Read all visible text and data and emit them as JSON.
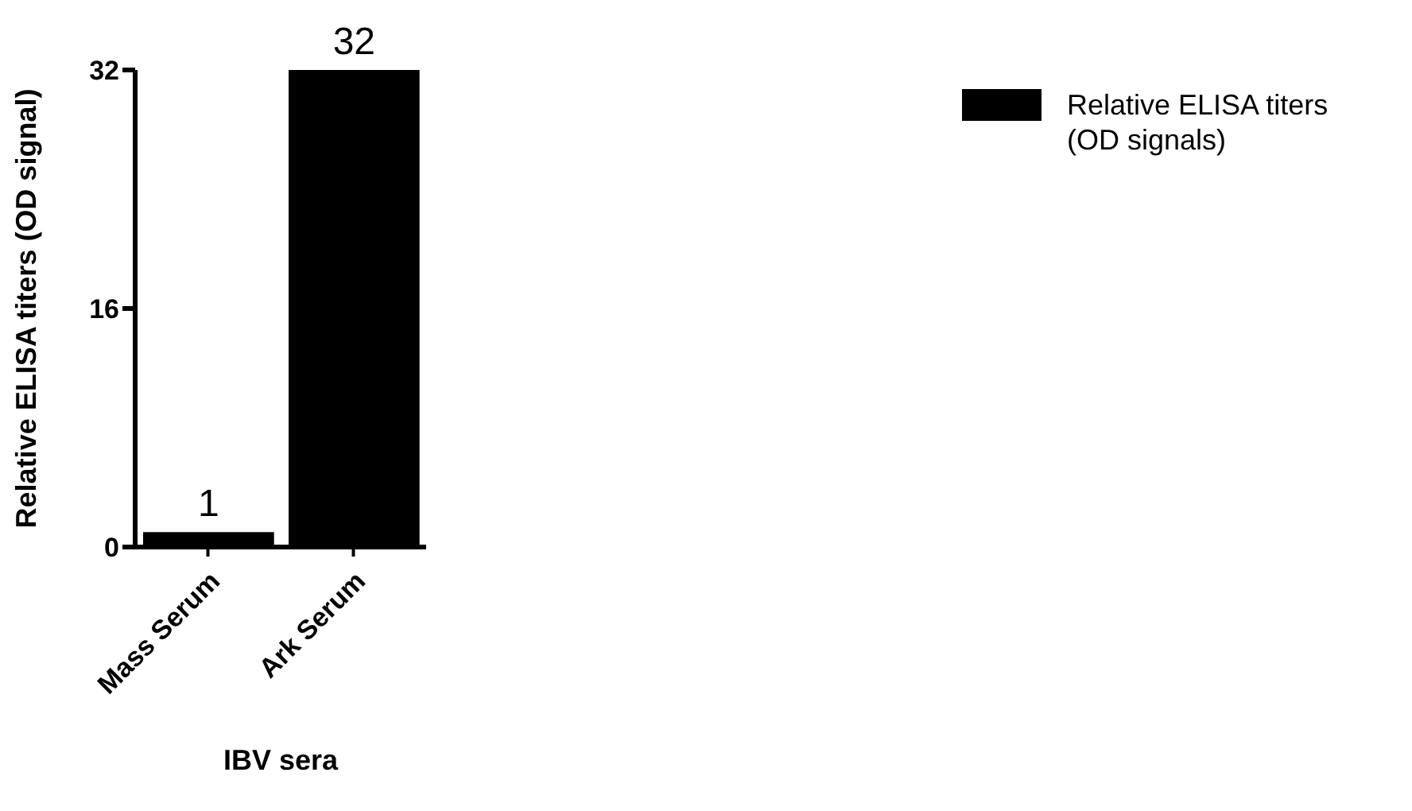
{
  "chart_data": {
    "type": "bar",
    "ylabel": "Relative ELISA titers (OD signal)",
    "xlabel": "IBV sera",
    "categories": [
      "Mass Serum",
      "Ark Serum"
    ],
    "series": [
      {
        "name": "Relative ELISA titers (OD signals)",
        "color": "#000000",
        "values": [
          1,
          32
        ]
      }
    ],
    "ylim": [
      0,
      32
    ],
    "yticks": [
      0,
      16,
      32
    ],
    "data_labels": true,
    "grid": false,
    "legend": "top right"
  }
}
